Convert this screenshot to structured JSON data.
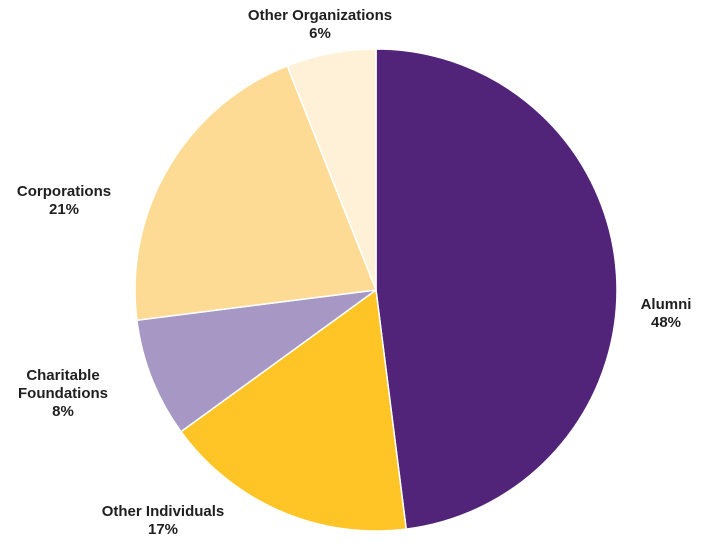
{
  "chart_data": {
    "type": "pie",
    "title": "",
    "slices": [
      {
        "label": "Alumni",
        "value": 48,
        "value_label": "48%",
        "color": "#51247a"
      },
      {
        "label": "Other Individuals",
        "value": 17,
        "value_label": "17%",
        "color": "#ffc425"
      },
      {
        "label": "Charitable Foundations",
        "label_lines": [
          "Charitable",
          "Foundations"
        ],
        "value": 8,
        "value_label": "8%",
        "color": "#a697c4"
      },
      {
        "label": "Corporations",
        "value": 21,
        "value_label": "21%",
        "color": "#fddb95"
      },
      {
        "label": "Other Organizations",
        "value": 6,
        "value_label": "6%",
        "color": "#fff1d8"
      }
    ],
    "start_angle": "12 o'clock",
    "direction": "clockwise",
    "legend": "none",
    "labels": "outside slices"
  }
}
